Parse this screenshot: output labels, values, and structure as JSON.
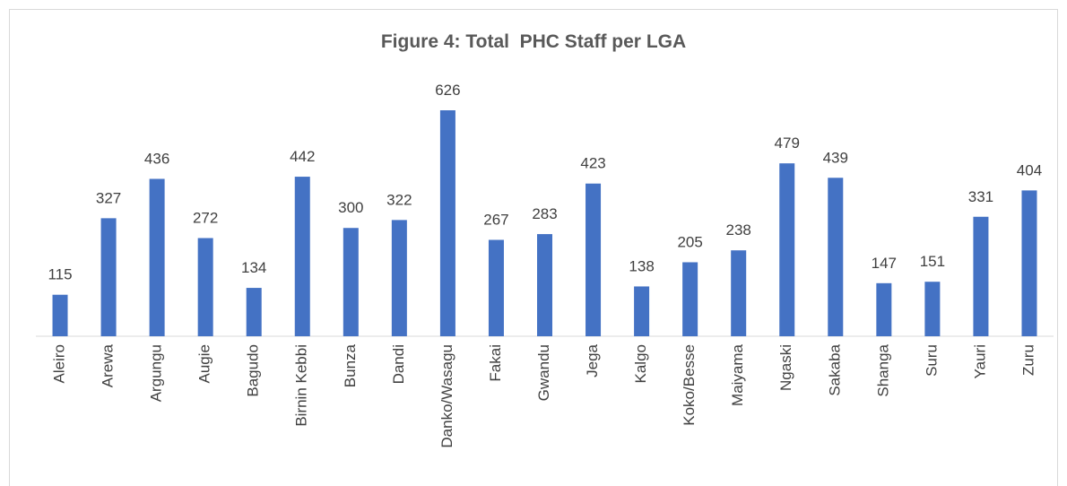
{
  "chart_data": {
    "type": "bar",
    "title": "Figure 4: Total  PHC Staff per LGA",
    "categories": [
      "Aleiro",
      "Arewa",
      "Argungu",
      "Augie",
      "Bagudo",
      "Birnin Kebbi",
      "Bunza",
      "Dandi",
      "Danko/Wasagu",
      "Fakai",
      "Gwandu",
      "Jega",
      "Kalgo",
      "Koko/Besse",
      "Maiyama",
      "Ngaski",
      "Sakaba",
      "Shanga",
      "Suru",
      "Yauri",
      "Zuru"
    ],
    "values": [
      115,
      327,
      436,
      272,
      134,
      442,
      300,
      322,
      626,
      267,
      283,
      423,
      138,
      205,
      238,
      479,
      439,
      147,
      151,
      331,
      404
    ],
    "color": "#4472c4"
  }
}
